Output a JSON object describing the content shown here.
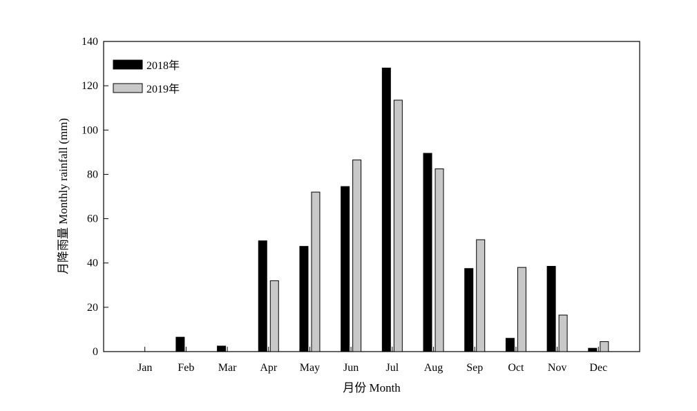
{
  "chart_data": {
    "type": "bar",
    "categories": [
      "Jan",
      "Feb",
      "Mar",
      "Apr",
      "May",
      "Jun",
      "Jul",
      "Aug",
      "Sep",
      "Oct",
      "Nov",
      "Dec"
    ],
    "series": [
      {
        "name": "2018年",
        "color": "#000000",
        "values": [
          0,
          6.5,
          2.5,
          50,
          47.5,
          74.5,
          128,
          89.5,
          37.5,
          6,
          38.5,
          1.5
        ]
      },
      {
        "name": "2019年",
        "color": "#c8c8c8",
        "values": [
          0,
          0,
          0,
          32,
          72,
          86.5,
          113.5,
          82.5,
          50.5,
          38,
          16.5,
          4.5
        ]
      }
    ],
    "xlabel": "月份 Month",
    "ylabel": "月降雨量 Monthly rainfall (mm)",
    "ylim": [
      0,
      140
    ],
    "yticks": [
      0,
      20,
      40,
      60,
      80,
      100,
      120,
      140
    ],
    "legend_position": "top-left",
    "grid": false
  }
}
